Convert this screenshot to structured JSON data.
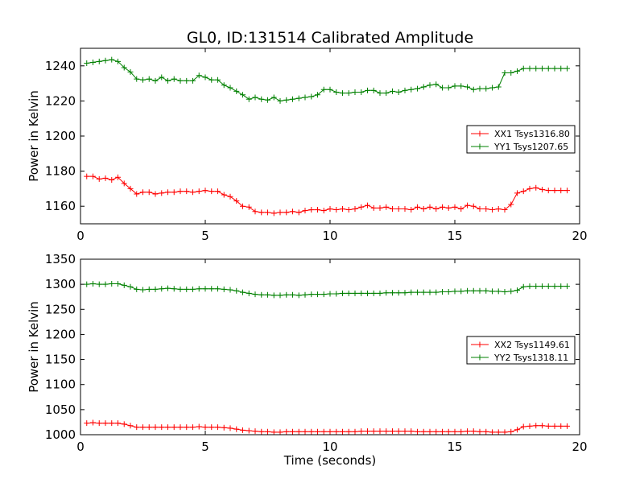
{
  "figure": {
    "title": "GL0, ID:131514 Calibrated Amplitude"
  },
  "chart_data": [
    {
      "type": "line",
      "title": "GL0, ID:131514 Calibrated Amplitude",
      "xlabel": "",
      "ylabel": "Power in Kelvin",
      "xlim": [
        0,
        20
      ],
      "ylim": [
        1150,
        1250
      ],
      "xticks": [
        0,
        5,
        10,
        15,
        20
      ],
      "yticks": [
        1160,
        1180,
        1200,
        1220,
        1240
      ],
      "grid": false,
      "legend_position": "right",
      "x": [
        0.25,
        0.5,
        0.75,
        1.0,
        1.25,
        1.5,
        1.75,
        2.0,
        2.25,
        2.5,
        2.75,
        3.0,
        3.25,
        3.5,
        3.75,
        4.0,
        4.25,
        4.5,
        4.75,
        5.0,
        5.25,
        5.5,
        5.75,
        6.0,
        6.25,
        6.5,
        6.75,
        7.0,
        7.25,
        7.5,
        7.75,
        8.0,
        8.25,
        8.5,
        8.75,
        9.0,
        9.25,
        9.5,
        9.75,
        10.0,
        10.25,
        10.5,
        10.75,
        11.0,
        11.25,
        11.5,
        11.75,
        12.0,
        12.25,
        12.5,
        12.75,
        13.0,
        13.25,
        13.5,
        13.75,
        14.0,
        14.25,
        14.5,
        14.75,
        15.0,
        15.25,
        15.5,
        15.75,
        16.0,
        16.25,
        16.5,
        16.75,
        17.0,
        17.25,
        17.5,
        17.75,
        18.0,
        18.25,
        18.5,
        18.75,
        19.0,
        19.25,
        19.5
      ],
      "series": [
        {
          "name": "XX1 Tsys1316.80",
          "color": "#ff0000",
          "values": [
            1177,
            1177,
            1175.5,
            1176,
            1175,
            1176.5,
            1173,
            1170,
            1167,
            1168,
            1168,
            1167,
            1167.5,
            1168,
            1168,
            1168.5,
            1168.5,
            1168,
            1168.5,
            1169,
            1168.5,
            1168.5,
            1166.5,
            1165.5,
            1163,
            1160,
            1159.5,
            1157,
            1156.5,
            1156.5,
            1156,
            1156.5,
            1156.5,
            1157,
            1156.5,
            1157.5,
            1158,
            1158,
            1157.5,
            1158.5,
            1158,
            1158.5,
            1158,
            1158.5,
            1159.5,
            1160.5,
            1159,
            1159,
            1159.5,
            1158.5,
            1158.5,
            1158.5,
            1158,
            1159.5,
            1158.5,
            1159.5,
            1158.5,
            1159.5,
            1159,
            1159.5,
            1158.5,
            1160.5,
            1160,
            1158.5,
            1158.5,
            1158,
            1158.5,
            1158,
            1161,
            1167.5,
            1168.5,
            1170,
            1170.5,
            1169.5,
            1169,
            1169,
            1169,
            1169
          ]
        },
        {
          "name": "YY1 Tsys1207.65",
          "color": "#008000",
          "values": [
            1241.5,
            1242,
            1242.5,
            1243,
            1243.5,
            1242.5,
            1239,
            1236.5,
            1232.5,
            1232,
            1232.5,
            1231.5,
            1233.5,
            1231.5,
            1232.5,
            1231.5,
            1231.5,
            1231.5,
            1234.5,
            1233.5,
            1232,
            1232,
            1229,
            1227.5,
            1225.5,
            1223.5,
            1221,
            1222,
            1221,
            1220.5,
            1222,
            1220,
            1220.5,
            1221,
            1221.5,
            1222,
            1222.5,
            1223.5,
            1226.5,
            1226.5,
            1225,
            1224.5,
            1224.5,
            1225,
            1225,
            1226,
            1226,
            1224.5,
            1224.5,
            1225.5,
            1225,
            1226,
            1226.5,
            1227,
            1228,
            1229,
            1229.5,
            1227.5,
            1227.5,
            1228.5,
            1228.5,
            1228,
            1226.5,
            1227,
            1227,
            1227.5,
            1228,
            1236,
            1236,
            1237,
            1238.5,
            1238.5,
            1238.5,
            1238.5,
            1238.5,
            1238.5,
            1238.5,
            1238.5
          ]
        }
      ]
    },
    {
      "type": "line",
      "title": "",
      "xlabel": "Time (seconds)",
      "ylabel": "Power in Kelvin",
      "xlim": [
        0,
        20
      ],
      "ylim": [
        1000,
        1350
      ],
      "xticks": [
        0,
        5,
        10,
        15,
        20
      ],
      "yticks": [
        1000,
        1050,
        1100,
        1150,
        1200,
        1250,
        1300,
        1350
      ],
      "grid": false,
      "legend_position": "right",
      "x": [
        0.25,
        0.5,
        0.75,
        1.0,
        1.25,
        1.5,
        1.75,
        2.0,
        2.25,
        2.5,
        2.75,
        3.0,
        3.25,
        3.5,
        3.75,
        4.0,
        4.25,
        4.5,
        4.75,
        5.0,
        5.25,
        5.5,
        5.75,
        6.0,
        6.25,
        6.5,
        6.75,
        7.0,
        7.25,
        7.5,
        7.75,
        8.0,
        8.25,
        8.5,
        8.75,
        9.0,
        9.25,
        9.5,
        9.75,
        10.0,
        10.25,
        10.5,
        10.75,
        11.0,
        11.25,
        11.5,
        11.75,
        12.0,
        12.25,
        12.5,
        12.75,
        13.0,
        13.25,
        13.5,
        13.75,
        14.0,
        14.25,
        14.5,
        14.75,
        15.0,
        15.25,
        15.5,
        15.75,
        16.0,
        16.25,
        16.5,
        16.75,
        17.0,
        17.25,
        17.5,
        17.75,
        18.0,
        18.25,
        18.5,
        18.75,
        19.0,
        19.25,
        19.5
      ],
      "series": [
        {
          "name": "XX2 Tsys1149.61",
          "color": "#ff0000",
          "values": [
            1023,
            1024,
            1023,
            1023,
            1023,
            1023,
            1021,
            1018,
            1015,
            1015,
            1015,
            1015,
            1015,
            1015,
            1015,
            1015,
            1015,
            1015,
            1016,
            1015,
            1015,
            1015,
            1014,
            1013,
            1011,
            1009,
            1008,
            1007,
            1006,
            1006,
            1005,
            1005,
            1006,
            1006,
            1006,
            1006,
            1006,
            1006,
            1006,
            1006,
            1006,
            1006,
            1006,
            1006,
            1007,
            1007,
            1007,
            1007,
            1007,
            1007,
            1007,
            1007,
            1007,
            1006,
            1006,
            1006,
            1006,
            1006,
            1006,
            1006,
            1006,
            1007,
            1007,
            1006,
            1006,
            1005,
            1005,
            1005,
            1006,
            1010,
            1016,
            1017,
            1018,
            1018,
            1017,
            1017,
            1017,
            1017
          ]
        },
        {
          "name": "YY2 Tsys1318.11",
          "color": "#008000",
          "values": [
            1300,
            1301,
            1300,
            1300,
            1301,
            1301,
            1298,
            1295,
            1290,
            1289,
            1290,
            1290,
            1291,
            1292,
            1291,
            1290,
            1290,
            1290,
            1291,
            1291,
            1291,
            1291,
            1290,
            1289,
            1287,
            1284,
            1282,
            1280,
            1279,
            1279,
            1278,
            1278,
            1279,
            1279,
            1278,
            1279,
            1280,
            1280,
            1280,
            1281,
            1281,
            1282,
            1282,
            1282,
            1282,
            1282,
            1282,
            1282,
            1283,
            1283,
            1283,
            1283,
            1284,
            1284,
            1284,
            1284,
            1284,
            1285,
            1285,
            1286,
            1286,
            1287,
            1287,
            1287,
            1287,
            1286,
            1286,
            1285,
            1286,
            1288,
            1295,
            1296,
            1296,
            1296,
            1296,
            1296,
            1296,
            1296
          ]
        }
      ]
    }
  ]
}
